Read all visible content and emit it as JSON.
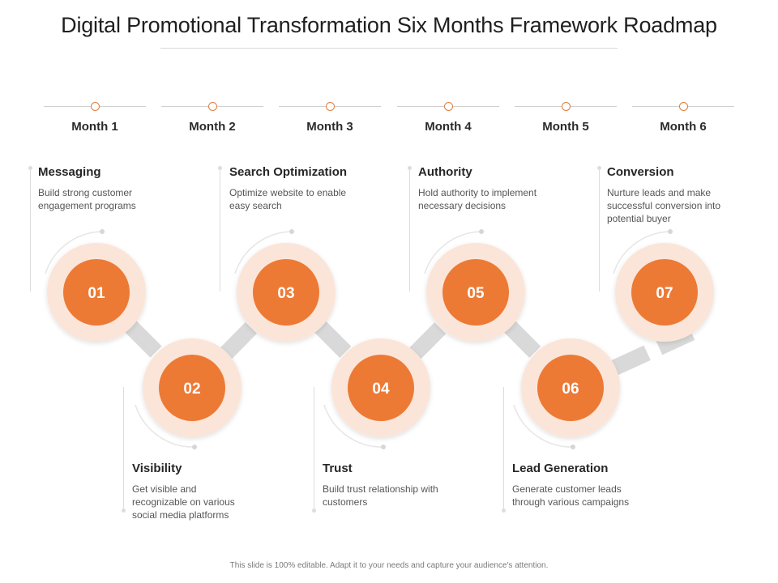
{
  "title": "Digital Promotional Transformation Six Months Framework Roadmap",
  "months": [
    "Month 1",
    "Month 2",
    "Month 3",
    "Month 4",
    "Month 5",
    "Month 6"
  ],
  "steps": [
    {
      "number": "01",
      "title": "Messaging",
      "description": "Build strong customer engagement programs"
    },
    {
      "number": "02",
      "title": "Visibility",
      "description": "Get visible and recognizable on various social media platforms"
    },
    {
      "number": "03",
      "title": "Search Optimization",
      "description": "Optimize website to enable easy search"
    },
    {
      "number": "04",
      "title": "Trust",
      "description": "Build trust relationship with customers"
    },
    {
      "number": "05",
      "title": "Authority",
      "description": "Hold authority to implement necessary decisions"
    },
    {
      "number": "06",
      "title": "Lead Generation",
      "description": "Generate customer leads through various campaigns"
    },
    {
      "number": "07",
      "title": "Conversion",
      "description": "Nurture leads and make successful conversion into potential buyer"
    }
  ],
  "footer": "This slide is 100% editable. Adapt it to your needs and capture your audience's attention.",
  "colors": {
    "accent": "#ec7a35",
    "ring": "#fbe5d9",
    "connector": "#d9d9d9",
    "guide": "#dddddd"
  }
}
